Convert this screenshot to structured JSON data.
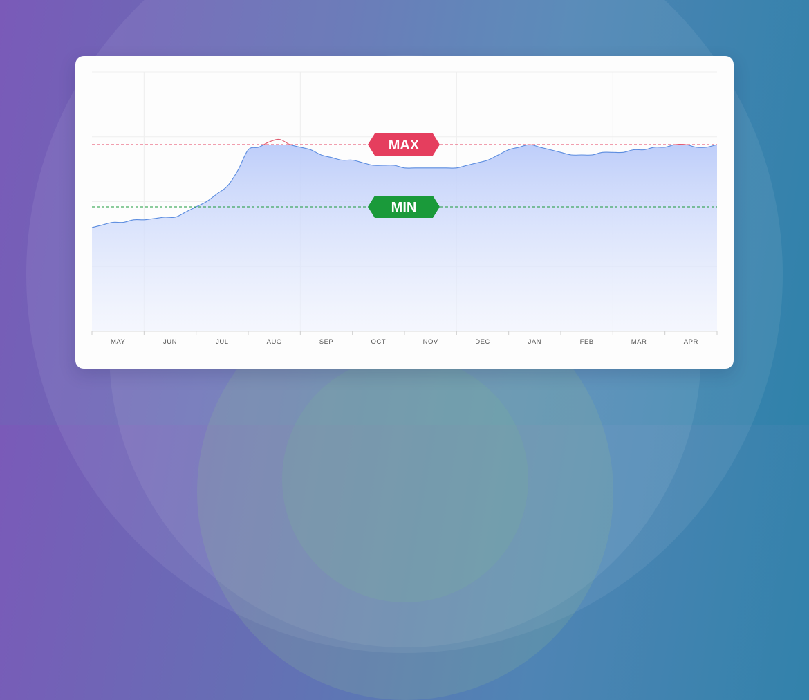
{
  "chart_data": {
    "type": "area",
    "categories": [
      "MAY",
      "JUN",
      "JUL",
      "AUG",
      "SEP",
      "OCT",
      "NOV",
      "DEC",
      "JAN",
      "FEB",
      "MAR",
      "APR"
    ],
    "ylim": [
      0,
      100
    ],
    "values": [
      [
        0.0,
        40
      ],
      [
        0.2,
        41
      ],
      [
        0.4,
        42
      ],
      [
        0.6,
        42
      ],
      [
        0.8,
        43
      ],
      [
        1.0,
        43
      ],
      [
        1.2,
        43.5
      ],
      [
        1.4,
        44
      ],
      [
        1.6,
        44
      ],
      [
        1.8,
        46
      ],
      [
        2.0,
        48
      ],
      [
        2.2,
        50
      ],
      [
        2.4,
        53
      ],
      [
        2.6,
        56
      ],
      [
        2.8,
        62
      ],
      [
        3.0,
        70
      ],
      [
        3.2,
        71
      ],
      [
        3.4,
        73
      ],
      [
        3.6,
        74
      ],
      [
        3.8,
        72
      ],
      [
        4.0,
        71
      ],
      [
        4.2,
        70
      ],
      [
        4.4,
        68
      ],
      [
        4.6,
        67
      ],
      [
        4.8,
        66
      ],
      [
        5.0,
        66
      ],
      [
        5.2,
        65
      ],
      [
        5.4,
        64
      ],
      [
        5.6,
        64
      ],
      [
        5.8,
        64
      ],
      [
        6.0,
        63
      ],
      [
        6.2,
        63
      ],
      [
        6.4,
        63
      ],
      [
        6.6,
        63
      ],
      [
        6.8,
        63
      ],
      [
        7.0,
        63
      ],
      [
        7.2,
        64
      ],
      [
        7.4,
        65
      ],
      [
        7.6,
        66
      ],
      [
        7.8,
        68
      ],
      [
        8.0,
        70
      ],
      [
        8.2,
        71
      ],
      [
        8.4,
        72
      ],
      [
        8.6,
        71
      ],
      [
        8.8,
        70
      ],
      [
        9.0,
        69
      ],
      [
        9.2,
        68
      ],
      [
        9.4,
        68
      ],
      [
        9.6,
        68
      ],
      [
        9.8,
        69
      ],
      [
        10.0,
        69
      ],
      [
        10.2,
        69
      ],
      [
        10.4,
        70
      ],
      [
        10.6,
        70
      ],
      [
        10.8,
        71
      ],
      [
        11.0,
        71
      ],
      [
        11.2,
        72
      ],
      [
        11.4,
        72
      ],
      [
        11.6,
        71
      ],
      [
        11.8,
        71
      ],
      [
        12.0,
        72
      ]
    ],
    "max_value": 72,
    "min_value": 48,
    "thresholds": [
      {
        "label": "MAX",
        "color": "#e53e5e"
      },
      {
        "label": "MIN",
        "color": "#1a9a3a"
      }
    ],
    "series": [
      {
        "color": "#5b8cdf",
        "over_max_color": "#e05a6e"
      }
    ],
    "grid": true
  }
}
